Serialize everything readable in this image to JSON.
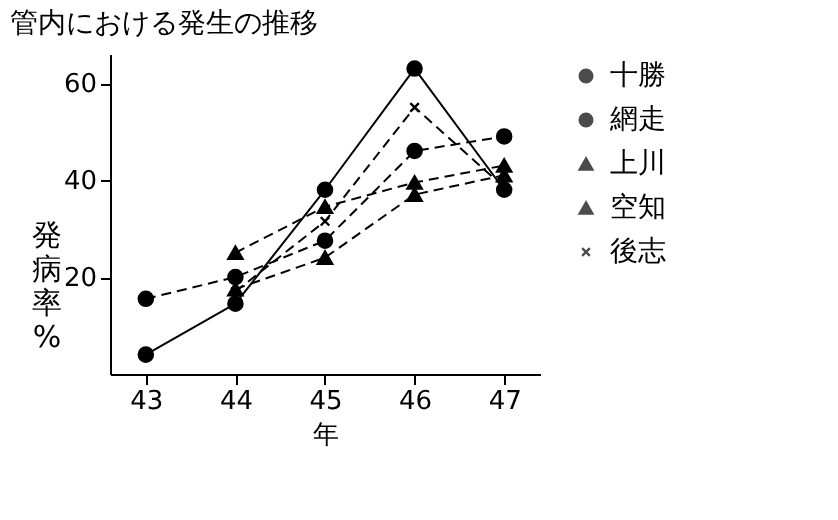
{
  "chart_data": {
    "type": "line",
    "title": "管内における発生の推移",
    "xlabel": "年",
    "ylabel": "発病率%",
    "categories": [
      "43",
      "44",
      "45",
      "46",
      "47"
    ],
    "series": [
      {
        "name": "十勝",
        "color": "#000000",
        "marker": "circle",
        "line_style": "solid",
        "values": [
          4,
          14.5,
          38,
          63,
          38
        ]
      },
      {
        "name": "網走",
        "color": "#000000",
        "marker": "circle",
        "line_style": "dashed",
        "values": [
          15.5,
          20,
          27.5,
          46,
          49
        ]
      },
      {
        "name": "上川",
        "color": "#000000",
        "marker": "triangle",
        "line_style": "dashed",
        "values": [
          null,
          25,
          34.5,
          39.5,
          43
        ]
      },
      {
        "name": "空知",
        "color": "#000000",
        "marker": "triangle",
        "line_style": "dashed",
        "values": [
          null,
          17.5,
          24,
          37,
          41
        ]
      },
      {
        "name": "後志",
        "color": "#000000",
        "marker": "cross",
        "line_style": "dashed",
        "values": [
          null,
          17,
          31.5,
          55,
          38.5
        ]
      }
    ],
    "ylim": [
      0,
      66
    ],
    "yticks": [
      20,
      40,
      60
    ],
    "grid": false,
    "legend": "right"
  }
}
